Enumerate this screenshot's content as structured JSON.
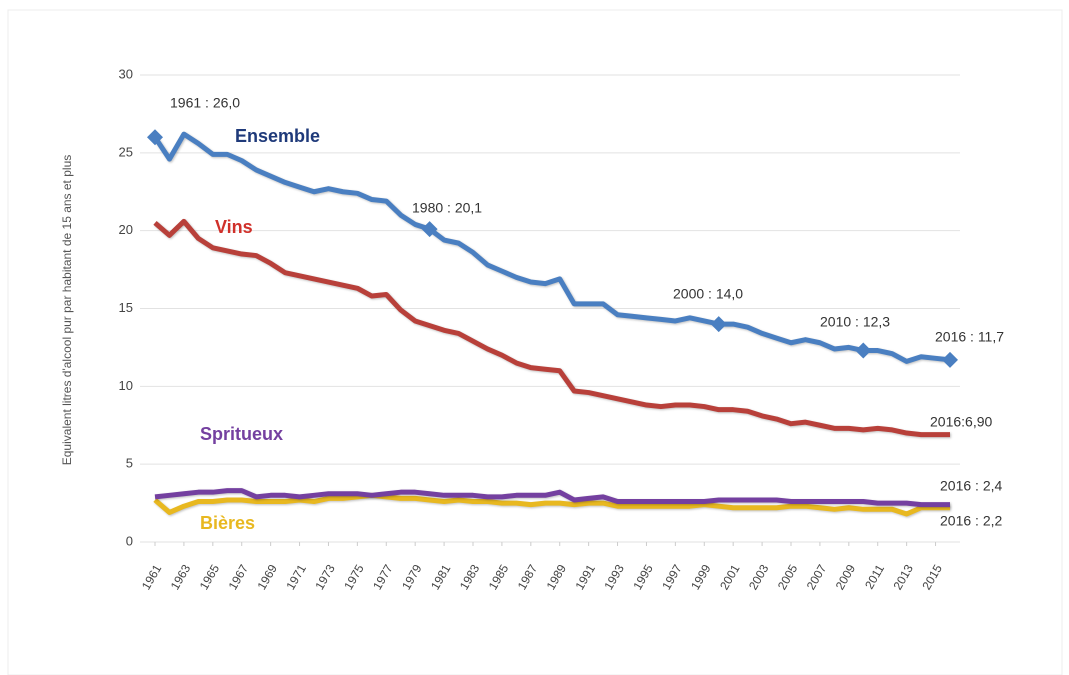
{
  "chart_data": {
    "type": "line",
    "y_label": "Equivalent litres d'alcool pur par habitant de 15 ans et plus",
    "x": [
      1961,
      1962,
      1963,
      1964,
      1965,
      1966,
      1967,
      1968,
      1969,
      1970,
      1971,
      1972,
      1973,
      1974,
      1975,
      1976,
      1977,
      1978,
      1979,
      1980,
      1981,
      1982,
      1983,
      1984,
      1985,
      1986,
      1987,
      1988,
      1989,
      1990,
      1991,
      1992,
      1993,
      1994,
      1995,
      1996,
      1997,
      1998,
      1999,
      2000,
      2001,
      2002,
      2003,
      2004,
      2005,
      2006,
      2007,
      2008,
      2009,
      2010,
      2011,
      2012,
      2013,
      2014,
      2015,
      2016
    ],
    "xlim": [
      1961,
      2016
    ],
    "xticks": [
      1961,
      1963,
      1965,
      1967,
      1969,
      1971,
      1973,
      1975,
      1977,
      1979,
      1981,
      1983,
      1985,
      1987,
      1989,
      1991,
      1993,
      1995,
      1997,
      1999,
      2001,
      2003,
      2005,
      2007,
      2009,
      2011,
      2013,
      2015
    ],
    "ylim": [
      0,
      30
    ],
    "yticks": [
      0,
      5,
      10,
      15,
      20,
      25,
      30
    ],
    "grid": true,
    "series": [
      {
        "name": "Ensemble",
        "color": "#4a7fc1",
        "values": [
          26.0,
          24.6,
          26.2,
          25.6,
          24.9,
          24.9,
          24.5,
          23.9,
          23.5,
          23.1,
          22.8,
          22.5,
          22.7,
          22.5,
          22.4,
          22.0,
          21.9,
          21.0,
          20.4,
          20.1,
          19.4,
          19.2,
          18.6,
          17.8,
          17.4,
          17.0,
          16.7,
          16.6,
          16.9,
          15.3,
          15.3,
          15.3,
          14.6,
          14.5,
          14.4,
          14.3,
          14.2,
          14.4,
          14.2,
          14.0,
          14.0,
          13.8,
          13.4,
          13.1,
          12.8,
          13.0,
          12.8,
          12.4,
          12.5,
          12.3,
          12.3,
          12.1,
          11.6,
          11.9,
          11.8,
          11.7
        ]
      },
      {
        "name": "Vins",
        "color": "#b8403a",
        "values": [
          20.5,
          19.7,
          20.6,
          19.5,
          18.9,
          18.7,
          18.5,
          18.4,
          17.9,
          17.3,
          17.1,
          16.9,
          16.7,
          16.5,
          16.3,
          15.8,
          15.9,
          14.9,
          14.2,
          13.9,
          13.6,
          13.4,
          12.9,
          12.4,
          12.0,
          11.5,
          11.2,
          11.1,
          11.0,
          9.7,
          9.6,
          9.4,
          9.2,
          9.0,
          8.8,
          8.7,
          8.8,
          8.8,
          8.7,
          8.5,
          8.5,
          8.4,
          8.1,
          7.9,
          7.6,
          7.7,
          7.5,
          7.3,
          7.3,
          7.2,
          7.3,
          7.2,
          7.0,
          6.9,
          6.9,
          6.9
        ]
      },
      {
        "name": "Spritueux",
        "color": "#7440a0",
        "values": [
          2.9,
          3.0,
          3.1,
          3.2,
          3.2,
          3.3,
          3.3,
          2.9,
          3.0,
          3.0,
          2.9,
          3.0,
          3.1,
          3.1,
          3.1,
          3.0,
          3.1,
          3.2,
          3.2,
          3.1,
          3.0,
          3.0,
          3.0,
          2.9,
          2.9,
          3.0,
          3.0,
          3.0,
          3.2,
          2.7,
          2.8,
          2.9,
          2.6,
          2.6,
          2.6,
          2.6,
          2.6,
          2.6,
          2.6,
          2.7,
          2.7,
          2.7,
          2.7,
          2.7,
          2.6,
          2.6,
          2.6,
          2.6,
          2.6,
          2.6,
          2.5,
          2.5,
          2.5,
          2.4,
          2.4,
          2.4
        ]
      },
      {
        "name": "Bières",
        "color": "#e8b820",
        "values": [
          2.7,
          1.9,
          2.3,
          2.6,
          2.6,
          2.7,
          2.7,
          2.6,
          2.6,
          2.6,
          2.7,
          2.6,
          2.8,
          2.8,
          2.9,
          3.0,
          2.9,
          2.8,
          2.8,
          2.7,
          2.6,
          2.7,
          2.6,
          2.6,
          2.5,
          2.5,
          2.4,
          2.5,
          2.5,
          2.4,
          2.5,
          2.5,
          2.3,
          2.3,
          2.3,
          2.3,
          2.3,
          2.3,
          2.4,
          2.3,
          2.2,
          2.2,
          2.2,
          2.2,
          2.3,
          2.3,
          2.2,
          2.1,
          2.2,
          2.1,
          2.1,
          2.1,
          1.8,
          2.2,
          2.2,
          2.2
        ]
      }
    ],
    "annotations": [
      "1961 : 26,0",
      "1980 : 20,1",
      "2000 : 14,0",
      "2010 : 12,3",
      "2016 : 11,7",
      "2016:6,90",
      "2016 : 2,4",
      "2016 : 2,2"
    ]
  }
}
